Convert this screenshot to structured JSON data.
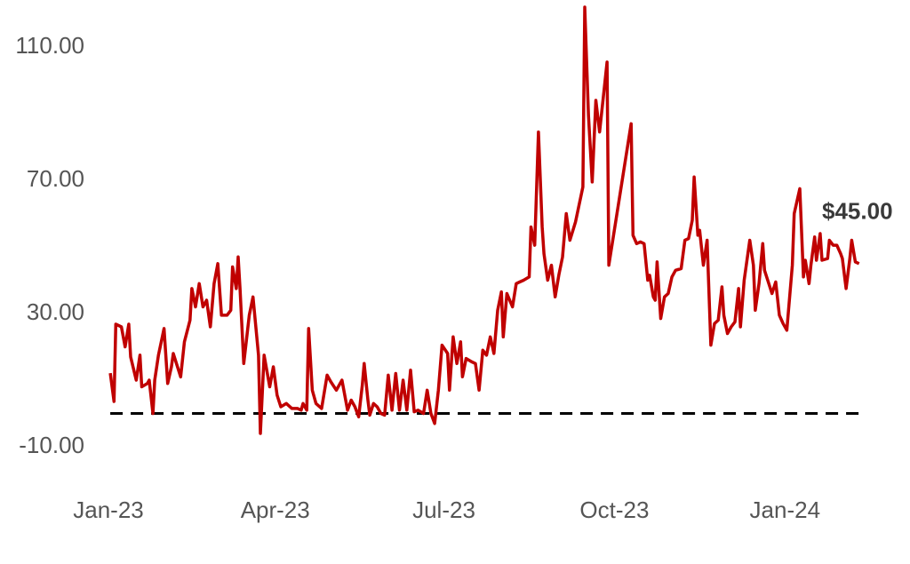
{
  "chart_data": {
    "type": "line",
    "color": "#c00000",
    "x": [
      1,
      3,
      4,
      7,
      9,
      11,
      12,
      15,
      17,
      18,
      21,
      22,
      24,
      25,
      27,
      30,
      32,
      34,
      35,
      39,
      41,
      44,
      45,
      47,
      49,
      51,
      53,
      55,
      57,
      59,
      61,
      64,
      66,
      67,
      69,
      70,
      71,
      73,
      76,
      78,
      81,
      82,
      84,
      87,
      89,
      91,
      93,
      96,
      99,
      102,
      104,
      105,
      107,
      108,
      110,
      112,
      115,
      118,
      120,
      123,
      126,
      129,
      131,
      133,
      135,
      137,
      138,
      140,
      141,
      143,
      145,
      147,
      149,
      151,
      153,
      155,
      157,
      159,
      161,
      163,
      165,
      167,
      170,
      172,
      174,
      176,
      178,
      180,
      183,
      184,
      186,
      188,
      190,
      191,
      193,
      196,
      198,
      200,
      202,
      204,
      206,
      208,
      210,
      212,
      213,
      215,
      218,
      220,
      222,
      224,
      227,
      228,
      230,
      232,
      234,
      235,
      237,
      239,
      241,
      243,
      245,
      247,
      249,
      252,
      256,
      257,
      259,
      261,
      263,
      265,
      267,
      269,
      270,
      282,
      283,
      285,
      287,
      289,
      291,
      292,
      294,
      295,
      296,
      298,
      300,
      302,
      304,
      306,
      309,
      311,
      313,
      315,
      316,
      318,
      319,
      321,
      323,
      325,
      327,
      329,
      331,
      332,
      334,
      336,
      338,
      340,
      341,
      343,
      346,
      348,
      349,
      351,
      353,
      354,
      356,
      358,
      360,
      362,
      364,
      366,
      369,
      370,
      373,
      375,
      376,
      378,
      379,
      381,
      382,
      384,
      385,
      388,
      389,
      391,
      393,
      395,
      396,
      398,
      400,
      401,
      403,
      405
    ],
    "values": [
      12.1,
      3.6,
      26.8,
      26,
      20,
      26.8,
      17,
      10,
      17.5,
      8,
      9,
      10,
      0,
      10,
      17.5,
      25.5,
      9,
      14,
      18,
      11,
      21.5,
      28,
      37.5,
      32,
      39,
      32,
      34,
      26,
      39,
      45,
      29.5,
      29.5,
      31,
      44,
      37.5,
      47,
      37.5,
      15,
      29.5,
      35,
      17.5,
      -6,
      17.5,
      8,
      14,
      5.5,
      2,
      3,
      1.5,
      1.5,
      1,
      3,
      1,
      25.5,
      7,
      3,
      1.5,
      11.5,
      9.5,
      7,
      10,
      1,
      4,
      2,
      -1,
      8.5,
      15,
      4,
      -0.5,
      3,
      2,
      0,
      -0.5,
      11.5,
      1,
      12,
      1,
      10,
      1,
      13,
      0.5,
      1,
      0,
      7,
      0,
      -3,
      7,
      20.5,
      18,
      7,
      23,
      15,
      21.5,
      11,
      16.5,
      15.5,
      15,
      7,
      19,
      17.5,
      23,
      18,
      31,
      36.5,
      23,
      36,
      32,
      39,
      39.5,
      40,
      41,
      56,
      50.5,
      84.5,
      56,
      48,
      40,
      44.5,
      35,
      41.5,
      47,
      60,
      52,
      57.5,
      68,
      122,
      89.5,
      69.5,
      94,
      84.5,
      95,
      105.5,
      44.5,
      87,
      53.5,
      51,
      51.5,
      51,
      40,
      41.5,
      35,
      34,
      45.5,
      28.5,
      35,
      36,
      41,
      43,
      43.5,
      52,
      52.5,
      58,
      71,
      53.5,
      55,
      44.5,
      52,
      20.5,
      27,
      28,
      38,
      29.5,
      24,
      26,
      27.5,
      37.5,
      26,
      40,
      52,
      44.5,
      31,
      39,
      51,
      43,
      39.5,
      36,
      39.5,
      29.5,
      27,
      25,
      44.5,
      60,
      67.5,
      41,
      46,
      39,
      44.5,
      53,
      46,
      54,
      46,
      46.5,
      52,
      50.5,
      50.5,
      48,
      46.5,
      37.5,
      46.5,
      52,
      45.5,
      45
    ],
    "annotation": "$45.00",
    "reference_line": 0,
    "xlim": [
      0,
      420
    ],
    "xticks": [
      {
        "value": 0,
        "label": "Jan-23"
      },
      {
        "value": 90,
        "label": "Apr-23"
      },
      {
        "value": 181,
        "label": "Jul-23"
      },
      {
        "value": 273,
        "label": "Oct-23"
      },
      {
        "value": 365,
        "label": "Jan-24"
      }
    ],
    "ylim": [
      -20,
      124
    ],
    "yticks": [
      {
        "value": -10,
        "label": "-10.00"
      },
      {
        "value": 30,
        "label": "30.00"
      },
      {
        "value": 70,
        "label": "70.00"
      },
      {
        "value": 110,
        "label": "110.00"
      }
    ]
  }
}
